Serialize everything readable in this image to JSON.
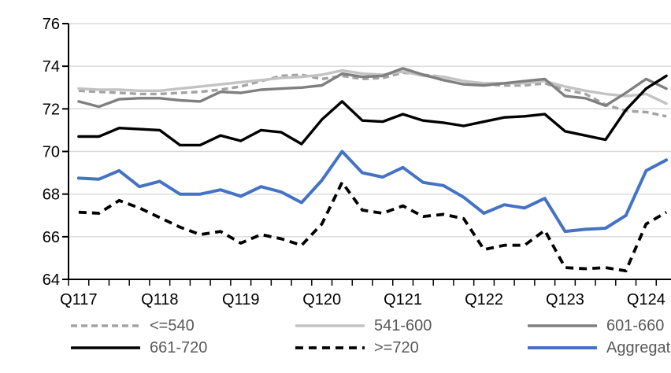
{
  "chart_data": {
    "type": "line",
    "title": "",
    "xlabel": "",
    "ylabel": "",
    "ylim": [
      64,
      76
    ],
    "y_ticks": [
      76,
      74,
      72,
      70,
      68,
      66,
      64
    ],
    "x_tick_labels": [
      "Q117",
      "Q118",
      "Q119",
      "Q120",
      "Q121",
      "Q122",
      "Q123",
      "Q124"
    ],
    "categories": [
      "Q117",
      "Q217",
      "Q317",
      "Q417",
      "Q118",
      "Q218",
      "Q318",
      "Q418",
      "Q119",
      "Q219",
      "Q319",
      "Q419",
      "Q120",
      "Q220",
      "Q320",
      "Q420",
      "Q121",
      "Q221",
      "Q321",
      "Q421",
      "Q122",
      "Q222",
      "Q322",
      "Q422",
      "Q123",
      "Q223",
      "Q323",
      "Q423",
      "Q124",
      "Q224"
    ],
    "grid": "horizontal",
    "legend_position": "bottom",
    "series": [
      {
        "name": "<=540",
        "color": "#a3a3a3",
        "line_style": "dashed",
        "values": [
          72.85,
          72.8,
          72.75,
          72.7,
          72.7,
          72.75,
          72.8,
          72.9,
          73.05,
          73.3,
          73.55,
          73.6,
          73.4,
          73.55,
          73.4,
          73.45,
          73.7,
          73.6,
          73.5,
          73.3,
          73.15,
          73.1,
          73.1,
          73.2,
          72.9,
          72.7,
          72.2,
          71.9,
          71.85,
          71.65
        ]
      },
      {
        "name": "541-600",
        "color": "#c3c3c3",
        "line_style": "solid",
        "values": [
          72.95,
          72.9,
          72.9,
          72.85,
          72.85,
          72.95,
          73.05,
          73.15,
          73.25,
          73.35,
          73.45,
          73.5,
          73.6,
          73.8,
          73.65,
          73.6,
          73.75,
          73.55,
          73.5,
          73.3,
          73.2,
          73.2,
          73.2,
          73.3,
          73.05,
          72.85,
          72.7,
          72.6,
          72.7,
          72.25
        ]
      },
      {
        "name": "601-660",
        "color": "#7f7f7f",
        "line_style": "solid",
        "values": [
          72.35,
          72.1,
          72.45,
          72.5,
          72.5,
          72.4,
          72.35,
          72.8,
          72.75,
          72.9,
          72.95,
          73.0,
          73.1,
          73.65,
          73.5,
          73.55,
          73.9,
          73.6,
          73.35,
          73.15,
          73.1,
          73.2,
          73.3,
          73.4,
          72.6,
          72.5,
          72.15,
          72.75,
          73.4,
          72.95
        ]
      },
      {
        "name": "661-720",
        "color": "#000000",
        "line_style": "solid",
        "values": [
          70.7,
          70.7,
          71.1,
          71.05,
          71.0,
          70.3,
          70.3,
          70.75,
          70.5,
          71.0,
          70.9,
          70.35,
          71.5,
          72.35,
          71.45,
          71.4,
          71.75,
          71.45,
          71.35,
          71.2,
          71.4,
          71.6,
          71.65,
          71.75,
          70.95,
          70.75,
          70.55,
          71.95,
          72.95,
          73.55
        ]
      },
      {
        "name": ">=720",
        "color": "#000000",
        "line_style": "dashed",
        "values": [
          67.15,
          67.1,
          67.7,
          67.35,
          66.9,
          66.45,
          66.1,
          66.25,
          65.7,
          66.1,
          65.9,
          65.6,
          66.6,
          68.55,
          67.25,
          67.1,
          67.45,
          66.95,
          67.05,
          66.85,
          65.4,
          65.6,
          65.6,
          66.3,
          64.55,
          64.5,
          64.55,
          64.4,
          66.6,
          67.15
        ]
      },
      {
        "name": "Aggregate",
        "color": "#4472c4",
        "line_style": "solid",
        "values": [
          68.75,
          68.7,
          69.1,
          68.35,
          68.6,
          68.0,
          68.0,
          68.2,
          67.9,
          68.35,
          68.1,
          67.6,
          68.65,
          70.0,
          69.0,
          68.8,
          69.25,
          68.55,
          68.4,
          67.85,
          67.1,
          67.5,
          67.35,
          67.8,
          66.25,
          66.35,
          66.4,
          67.0,
          69.1,
          69.6
        ]
      }
    ],
    "legend_rows": [
      [
        0,
        1,
        2
      ],
      [
        3,
        4,
        5
      ]
    ]
  },
  "colors": {
    "background": "#ffffff",
    "gridline": "#d9d9d9",
    "axis": "#000000",
    "tick_label": "#000000",
    "legend_text": "#595959"
  }
}
